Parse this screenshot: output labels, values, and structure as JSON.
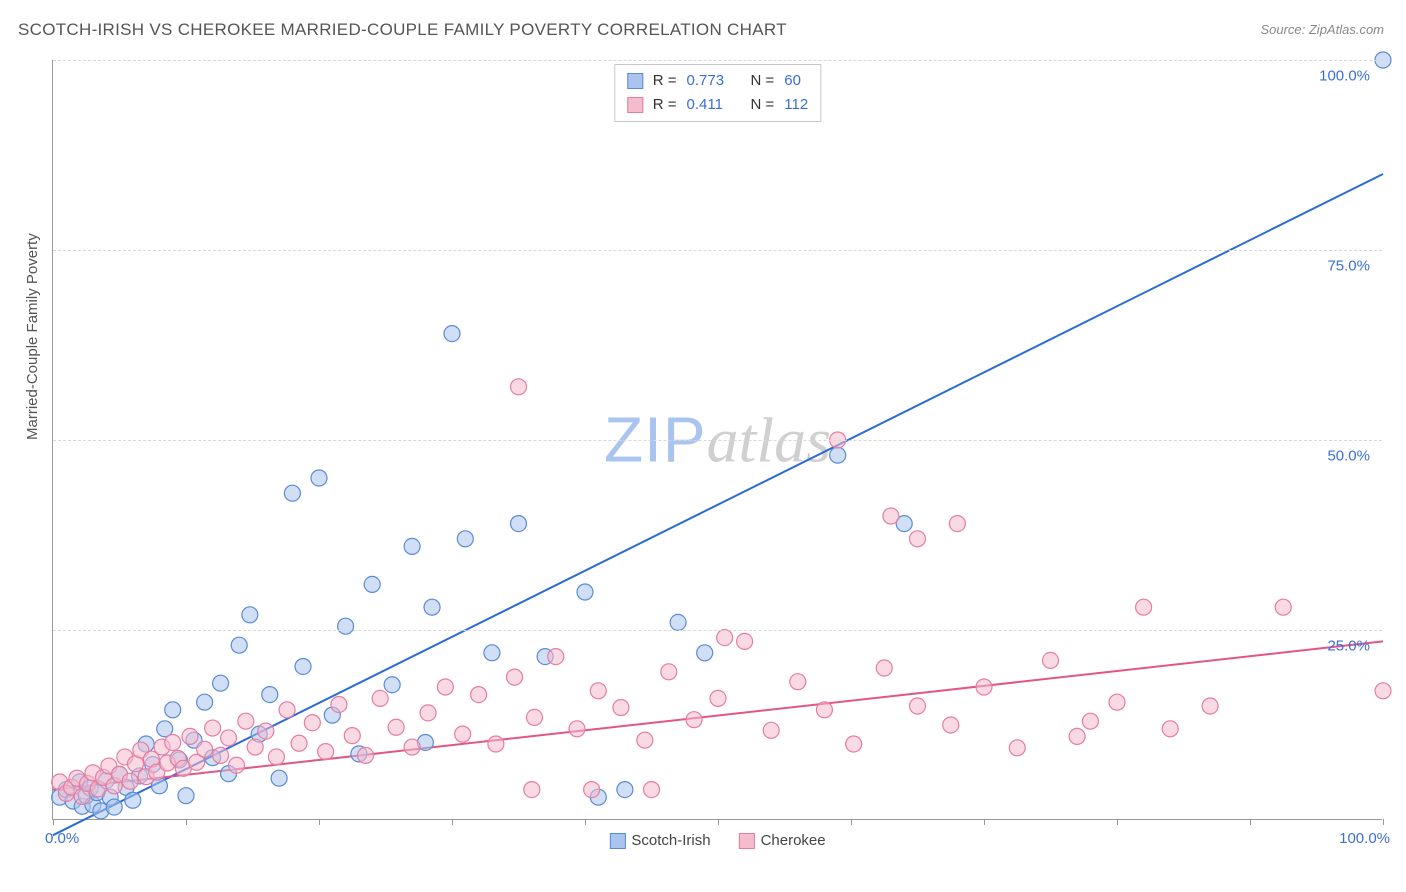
{
  "title": "SCOTCH-IRISH VS CHEROKEE MARRIED-COUPLE FAMILY POVERTY CORRELATION CHART",
  "source_label": "Source: ZipAtlas.com",
  "y_axis_label": "Married-Couple Family Poverty",
  "watermark": {
    "zip": "ZIP",
    "atlas": "atlas"
  },
  "chart": {
    "type": "scatter",
    "xlim": [
      0,
      100
    ],
    "ylim": [
      0,
      100
    ],
    "x_ticks": [
      0,
      10,
      20,
      30,
      40,
      50,
      60,
      70,
      80,
      90,
      100
    ],
    "y_gridlines": [
      25,
      50,
      75,
      100
    ],
    "y_tick_labels": [
      "25.0%",
      "50.0%",
      "75.0%",
      "100.0%"
    ],
    "x_tick_labels": {
      "min": "0.0%",
      "max": "100.0%"
    },
    "background_color": "#ffffff",
    "grid_color": "#d8d8d8",
    "axis_color": "#999999",
    "marker_radius": 8,
    "marker_stroke_width": 1.2,
    "line_width": 2,
    "series": [
      {
        "name": "Scotch-Irish",
        "fill_color": "#a9c4ef",
        "stroke_color": "#5a8bd6",
        "fill_opacity": 0.55,
        "line_color": "#2b6cd4",
        "r": 0.773,
        "n": 60,
        "trend": {
          "x1": 0,
          "y1": -2,
          "x2": 100,
          "y2": 85
        },
        "points": [
          [
            0.5,
            3
          ],
          [
            1,
            4
          ],
          [
            1.5,
            2.5
          ],
          [
            2,
            5
          ],
          [
            2.2,
            1.8
          ],
          [
            2.5,
            3.2
          ],
          [
            2.8,
            4.2
          ],
          [
            3,
            2
          ],
          [
            3.3,
            3.6
          ],
          [
            3.6,
            1.2
          ],
          [
            4,
            5.2
          ],
          [
            4.3,
            3
          ],
          [
            4.6,
            1.7
          ],
          [
            5,
            6
          ],
          [
            5.5,
            4.3
          ],
          [
            6,
            2.6
          ],
          [
            6.5,
            5.8
          ],
          [
            7,
            10
          ],
          [
            7.5,
            7.3
          ],
          [
            8,
            4.5
          ],
          [
            8.4,
            12
          ],
          [
            9,
            14.5
          ],
          [
            9.5,
            7.9
          ],
          [
            10,
            3.2
          ],
          [
            10.6,
            10.5
          ],
          [
            11.4,
            15.5
          ],
          [
            12,
            8.2
          ],
          [
            12.6,
            18
          ],
          [
            13.2,
            6.1
          ],
          [
            14,
            23
          ],
          [
            14.8,
            27
          ],
          [
            15.5,
            11.3
          ],
          [
            16.3,
            16.5
          ],
          [
            17,
            5.5
          ],
          [
            18,
            43
          ],
          [
            18.8,
            20.2
          ],
          [
            20,
            45
          ],
          [
            21,
            13.8
          ],
          [
            22,
            25.5
          ],
          [
            23,
            8.7
          ],
          [
            24,
            31
          ],
          [
            25.5,
            17.8
          ],
          [
            27,
            36
          ],
          [
            28,
            10.2
          ],
          [
            28.5,
            28
          ],
          [
            30,
            64
          ],
          [
            31,
            37
          ],
          [
            33,
            22
          ],
          [
            35,
            39
          ],
          [
            37,
            21.5
          ],
          [
            40,
            30
          ],
          [
            41,
            3
          ],
          [
            43,
            4
          ],
          [
            47,
            26
          ],
          [
            49,
            22
          ],
          [
            59,
            48
          ],
          [
            64,
            39
          ],
          [
            100,
            100
          ]
        ]
      },
      {
        "name": "Cherokee",
        "fill_color": "#f4bccd",
        "stroke_color": "#e77ca0",
        "fill_opacity": 0.55,
        "line_color": "#e15686",
        "r": 0.411,
        "n": 112,
        "trend": {
          "x1": 0,
          "y1": 4,
          "x2": 100,
          "y2": 23.5
        },
        "points": [
          [
            0.5,
            5
          ],
          [
            1,
            3.5
          ],
          [
            1.4,
            4.3
          ],
          [
            1.8,
            5.5
          ],
          [
            2.2,
            3.1
          ],
          [
            2.6,
            4.8
          ],
          [
            3,
            6.2
          ],
          [
            3.4,
            4.1
          ],
          [
            3.8,
            5.6
          ],
          [
            4.2,
            7.1
          ],
          [
            4.6,
            4.5
          ],
          [
            5,
            6
          ],
          [
            5.4,
            8.3
          ],
          [
            5.8,
            5.1
          ],
          [
            6.2,
            7.4
          ],
          [
            6.6,
            9.2
          ],
          [
            7,
            5.7
          ],
          [
            7.4,
            8
          ],
          [
            7.8,
            6.3
          ],
          [
            8.2,
            9.6
          ],
          [
            8.6,
            7.5
          ],
          [
            9,
            10.2
          ],
          [
            9.4,
            8.1
          ],
          [
            9.8,
            6.8
          ],
          [
            10.3,
            11
          ],
          [
            10.8,
            7.6
          ],
          [
            11.4,
            9.3
          ],
          [
            12,
            12.1
          ],
          [
            12.6,
            8.5
          ],
          [
            13.2,
            10.8
          ],
          [
            13.8,
            7.2
          ],
          [
            14.5,
            13
          ],
          [
            15.2,
            9.6
          ],
          [
            16,
            11.7
          ],
          [
            16.8,
            8.3
          ],
          [
            17.6,
            14.5
          ],
          [
            18.5,
            10.1
          ],
          [
            19.5,
            12.8
          ],
          [
            20.5,
            9
          ],
          [
            21.5,
            15.2
          ],
          [
            22.5,
            11.1
          ],
          [
            23.5,
            8.5
          ],
          [
            24.6,
            16
          ],
          [
            25.8,
            12.2
          ],
          [
            27,
            9.6
          ],
          [
            28.2,
            14.1
          ],
          [
            29.5,
            17.5
          ],
          [
            30.8,
            11.3
          ],
          [
            32,
            16.5
          ],
          [
            33.3,
            10
          ],
          [
            34.7,
            18.8
          ],
          [
            35,
            57
          ],
          [
            36.2,
            13.5
          ],
          [
            37.8,
            21.5
          ],
          [
            39.4,
            12
          ],
          [
            36,
            4
          ],
          [
            40.5,
            4
          ],
          [
            41,
            17
          ],
          [
            42.7,
            14.8
          ],
          [
            44.5,
            10.5
          ],
          [
            45,
            4
          ],
          [
            46.3,
            19.5
          ],
          [
            48.2,
            13.2
          ],
          [
            50,
            16
          ],
          [
            50.5,
            24
          ],
          [
            52,
            23.5
          ],
          [
            54,
            11.8
          ],
          [
            56,
            18.2
          ],
          [
            58,
            14.5
          ],
          [
            59,
            50
          ],
          [
            60.2,
            10
          ],
          [
            62.5,
            20
          ],
          [
            63,
            40
          ],
          [
            65,
            15
          ],
          [
            65,
            37
          ],
          [
            67.5,
            12.5
          ],
          [
            68,
            39
          ],
          [
            70,
            17.5
          ],
          [
            72.5,
            9.5
          ],
          [
            75,
            21
          ],
          [
            77,
            11
          ],
          [
            78,
            13
          ],
          [
            80,
            15.5
          ],
          [
            82,
            28
          ],
          [
            84,
            12
          ],
          [
            87,
            15
          ],
          [
            92.5,
            28
          ],
          [
            100,
            17
          ]
        ]
      }
    ]
  },
  "legend_bottom": [
    {
      "label": "Scotch-Irish",
      "fill": "#a9c4ef",
      "stroke": "#5a8bd6"
    },
    {
      "label": "Cherokee",
      "fill": "#f4bccd",
      "stroke": "#e77ca0"
    }
  ]
}
